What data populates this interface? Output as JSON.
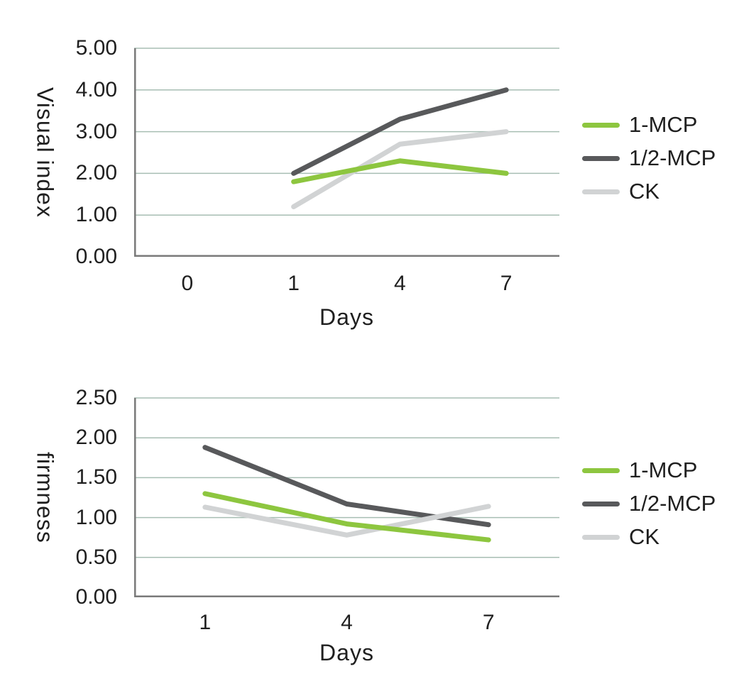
{
  "page": {
    "background": "#ffffff",
    "text_color": "#1f1f1f"
  },
  "colors": {
    "series_1mcp": "#8dc63f",
    "series_half_mcp": "#58595b",
    "series_ck": "#d1d3d4",
    "gridline": "#a7beb3",
    "axis_line": "#7a7a7a"
  },
  "chart_data": [
    {
      "type": "line",
      "title": "",
      "ylabel": "Visual index",
      "xlabel": "Days",
      "categories": [
        "0",
        "1",
        "4",
        "7"
      ],
      "series": [
        {
          "name": "1-MCP",
          "color": "#8dc63f",
          "values": [
            null,
            1.8,
            2.3,
            2.0
          ]
        },
        {
          "name": "1/2-MCP",
          "color": "#58595b",
          "values": [
            null,
            2.0,
            3.3,
            4.0
          ]
        },
        {
          "name": "CK",
          "color": "#d1d3d4",
          "values": [
            null,
            1.2,
            2.7,
            3.0
          ]
        }
      ],
      "draw_order": [
        1,
        2,
        0
      ],
      "ylim": [
        0,
        5
      ],
      "yticks": [
        0,
        1,
        2,
        3,
        4,
        5
      ],
      "yticklabels": [
        "0.00",
        "1.00",
        "2.00",
        "3.00",
        "4.00",
        "5.00"
      ],
      "grid": true,
      "line_width": 7,
      "legend_position": "right"
    },
    {
      "type": "line",
      "title": "",
      "ylabel": "firmness",
      "xlabel": "Days",
      "categories": [
        "1",
        "4",
        "7"
      ],
      "series": [
        {
          "name": "1-MCP",
          "color": "#8dc63f",
          "values": [
            1.3,
            0.92,
            0.72
          ]
        },
        {
          "name": "1/2-MCP",
          "color": "#58595b",
          "values": [
            1.88,
            1.17,
            0.91
          ]
        },
        {
          "name": "CK",
          "color": "#d1d3d4",
          "values": [
            1.13,
            0.78,
            1.14
          ]
        }
      ],
      "draw_order": [
        1,
        2,
        0
      ],
      "ylim": [
        0,
        2.5
      ],
      "yticks": [
        0,
        0.5,
        1,
        1.5,
        2,
        2.5
      ],
      "yticklabels": [
        "0.00",
        "0.50",
        "1.00",
        "1.50",
        "2.00",
        "2.50"
      ],
      "grid": true,
      "line_width": 7,
      "legend_position": "right"
    }
  ]
}
